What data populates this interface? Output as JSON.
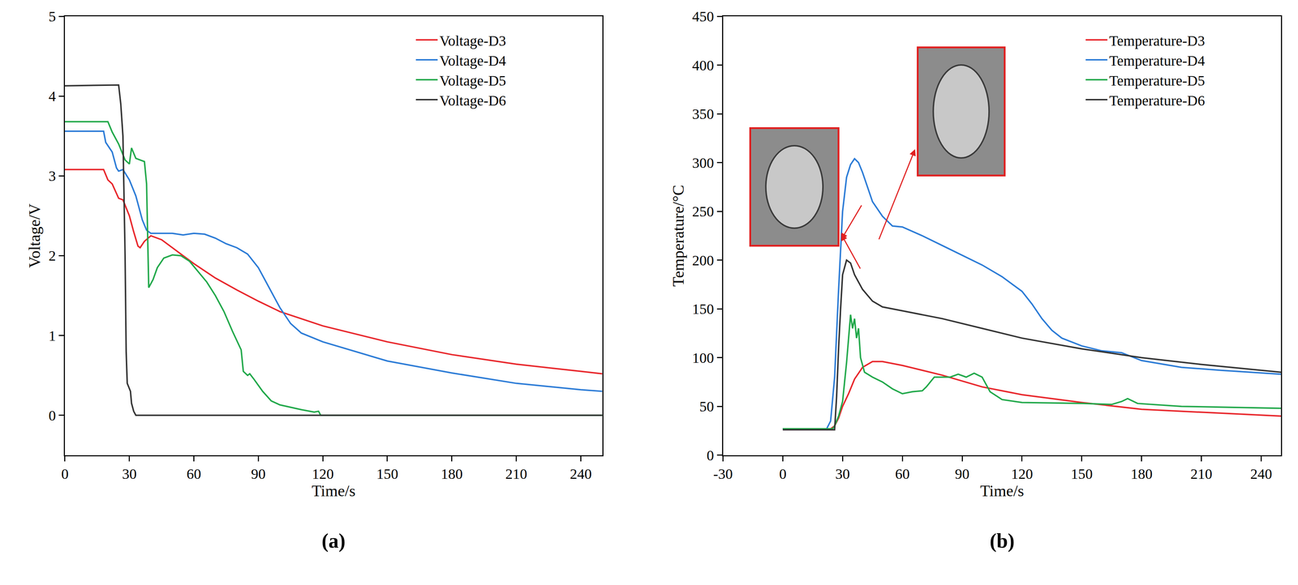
{
  "chart_data": [
    {
      "type": "line",
      "label": "(a)",
      "x_label": "Time/s",
      "y_label": "Voltage/V",
      "xlim": [
        0,
        250
      ],
      "xticks": [
        0,
        30,
        60,
        90,
        120,
        150,
        180,
        210,
        240
      ],
      "ylim": [
        -0.5,
        5
      ],
      "yticks": [
        0,
        1,
        2,
        3,
        4,
        5
      ],
      "grid": false,
      "legend": "upper right",
      "series": [
        {
          "name": "Voltage-D3",
          "color": "#e8262b",
          "x": [
            0,
            18,
            20,
            22,
            25,
            27,
            30,
            32,
            34,
            35,
            37,
            40,
            45,
            50,
            60,
            70,
            80,
            90,
            100,
            120,
            150,
            180,
            210,
            240,
            250
          ],
          "values": [
            3.08,
            3.08,
            2.95,
            2.9,
            2.72,
            2.7,
            2.5,
            2.3,
            2.12,
            2.1,
            2.18,
            2.25,
            2.2,
            2.1,
            1.9,
            1.72,
            1.57,
            1.43,
            1.3,
            1.12,
            0.92,
            0.76,
            0.64,
            0.55,
            0.52
          ]
        },
        {
          "name": "Voltage-D4",
          "color": "#2b7bd6",
          "x": [
            0,
            18,
            19,
            22,
            24,
            25,
            27,
            30,
            33,
            36,
            38,
            40,
            45,
            50,
            55,
            60,
            65,
            70,
            75,
            80,
            85,
            90,
            95,
            100,
            105,
            110,
            120,
            150,
            180,
            210,
            240,
            250
          ],
          "values": [
            3.56,
            3.56,
            3.42,
            3.3,
            3.1,
            3.06,
            3.08,
            2.95,
            2.75,
            2.45,
            2.32,
            2.28,
            2.28,
            2.28,
            2.26,
            2.28,
            2.27,
            2.22,
            2.15,
            2.1,
            2.02,
            1.85,
            1.6,
            1.35,
            1.15,
            1.03,
            0.92,
            0.68,
            0.53,
            0.4,
            0.32,
            0.3
          ]
        },
        {
          "name": "Voltage-D5",
          "color": "#21a84a",
          "x": [
            0,
            20,
            22,
            25,
            28,
            30,
            31,
            33,
            35,
            37,
            38,
            39,
            41,
            43,
            46,
            50,
            54,
            58,
            62,
            66,
            70,
            74,
            78,
            82,
            83,
            85,
            86,
            88,
            92,
            96,
            100,
            105,
            110,
            116,
            118,
            119,
            250
          ],
          "values": [
            3.68,
            3.68,
            3.55,
            3.4,
            3.2,
            3.15,
            3.35,
            3.22,
            3.2,
            3.18,
            2.9,
            1.6,
            1.7,
            1.85,
            1.97,
            2.01,
            2.0,
            1.93,
            1.8,
            1.67,
            1.5,
            1.3,
            1.05,
            0.82,
            0.55,
            0.5,
            0.52,
            0.45,
            0.3,
            0.18,
            0.13,
            0.1,
            0.07,
            0.04,
            0.05,
            0,
            0
          ]
        },
        {
          "name": "Voltage-D6",
          "color": "#333333",
          "x": [
            0,
            25,
            26,
            27,
            28,
            28.5,
            29,
            30.5,
            31,
            32,
            33,
            250
          ],
          "values": [
            4.13,
            4.14,
            3.9,
            3.5,
            2.0,
            0.8,
            0.4,
            0.3,
            0.15,
            0.05,
            0,
            0
          ]
        }
      ]
    },
    {
      "type": "line",
      "label": "(b)",
      "x_label": "Time/s",
      "y_label": "Temperature/°C",
      "xlim": [
        -30,
        250
      ],
      "xticks": [
        -30,
        0,
        30,
        60,
        90,
        120,
        150,
        180,
        210,
        240
      ],
      "ylim": [
        0,
        450
      ],
      "yticks": [
        0,
        50,
        100,
        150,
        200,
        250,
        300,
        350,
        400,
        450
      ],
      "grid": false,
      "legend": "upper right",
      "series": [
        {
          "name": "Temperature-D3",
          "color": "#e8262b",
          "x": [
            0,
            24,
            26,
            28,
            30,
            33,
            36,
            40,
            45,
            50,
            60,
            80,
            100,
            120,
            150,
            180,
            210,
            250
          ],
          "values": [
            27,
            27,
            30,
            38,
            50,
            63,
            78,
            90,
            96,
            96,
            92,
            82,
            70,
            62,
            54,
            47,
            44,
            40
          ]
        },
        {
          "name": "Temperature-D4",
          "color": "#2b7bd6",
          "x": [
            0,
            22,
            24,
            26,
            28,
            30,
            32,
            34,
            36,
            38,
            40,
            45,
            50,
            55,
            60,
            70,
            80,
            90,
            100,
            110,
            120,
            125,
            130,
            135,
            140,
            150,
            160,
            170,
            180,
            200,
            220,
            250
          ],
          "values": [
            27,
            27,
            35,
            80,
            170,
            250,
            285,
            298,
            304,
            300,
            290,
            260,
            245,
            235,
            234,
            225,
            215,
            205,
            195,
            183,
            168,
            155,
            140,
            128,
            120,
            112,
            107,
            105,
            97,
            90,
            87,
            83
          ]
        },
        {
          "name": "Temperature-D5",
          "color": "#21a84a",
          "x": [
            0,
            25,
            26,
            28,
            30,
            32,
            34,
            35,
            36,
            37,
            38,
            39,
            41,
            45,
            50,
            55,
            60,
            65,
            70,
            72,
            76,
            80,
            84,
            88,
            92,
            96,
            100,
            104,
            110,
            120,
            150,
            165,
            170,
            173,
            178,
            200,
            250
          ],
          "values": [
            27,
            27,
            30,
            40,
            55,
            95,
            144,
            130,
            140,
            120,
            130,
            100,
            85,
            80,
            75,
            68,
            63,
            65,
            66,
            70,
            80,
            80,
            80,
            83,
            80,
            84,
            80,
            65,
            57,
            54,
            53,
            52,
            55,
            58,
            53,
            50,
            48
          ]
        },
        {
          "name": "Temperature-D6",
          "color": "#333333",
          "x": [
            0,
            26,
            27,
            28,
            29,
            30,
            32,
            34,
            36,
            40,
            45,
            50,
            60,
            80,
            100,
            120,
            150,
            180,
            210,
            250
          ],
          "values": [
            26,
            26,
            60,
            110,
            150,
            185,
            200,
            197,
            185,
            170,
            158,
            152,
            148,
            140,
            130,
            120,
            109,
            100,
            93,
            85
          ]
        }
      ]
    }
  ]
}
